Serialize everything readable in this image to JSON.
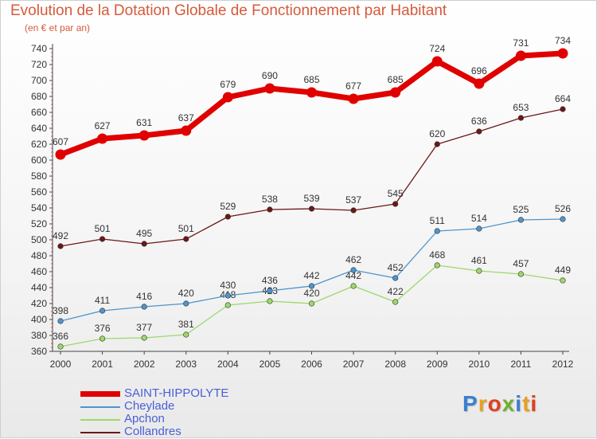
{
  "chart_data": {
    "type": "line",
    "title": "Evolution de la Dotation Globale de Fonctionnement par Habitant",
    "subtitle": "(en € et par an)",
    "x": [
      "2000",
      "2001",
      "2002",
      "2003",
      "2004",
      "2005",
      "2006",
      "2007",
      "2008",
      "2009",
      "2010",
      "2011",
      "2012"
    ],
    "ylim": [
      360,
      740
    ],
    "yticks": [
      360,
      380,
      400,
      420,
      440,
      460,
      480,
      500,
      520,
      540,
      560,
      580,
      600,
      620,
      640,
      660,
      680,
      700,
      720,
      740
    ],
    "grid": false,
    "legend_position": "bottom-left",
    "series": [
      {
        "name": "SAINT-HIPPOLYTE",
        "color": "#e00000",
        "values": [
          607,
          627,
          631,
          637,
          679,
          690,
          685,
          677,
          685,
          724,
          696,
          731,
          734
        ]
      },
      {
        "name": "Cheylade",
        "color": "#4f95cc",
        "values": [
          398,
          411,
          416,
          420,
          430,
          436,
          442,
          462,
          452,
          511,
          514,
          525,
          526
        ]
      },
      {
        "name": "Apchon",
        "color": "#9dd86a",
        "values": [
          366,
          376,
          377,
          381,
          418,
          423,
          420,
          442,
          422,
          468,
          461,
          457,
          449
        ]
      },
      {
        "name": "Collandres",
        "color": "#6e1616",
        "values": [
          492,
          501,
          495,
          501,
          529,
          538,
          539,
          537,
          545,
          620,
          636,
          653,
          664
        ]
      }
    ]
  },
  "logo": {
    "letters": [
      "P",
      "r",
      "o",
      "x",
      "i",
      "t",
      "i"
    ],
    "colors": [
      "#3a7fd0",
      "#e8a020",
      "#e04020",
      "#70b030",
      "#3a7fd0",
      "#e8a020",
      "#e04020"
    ]
  }
}
